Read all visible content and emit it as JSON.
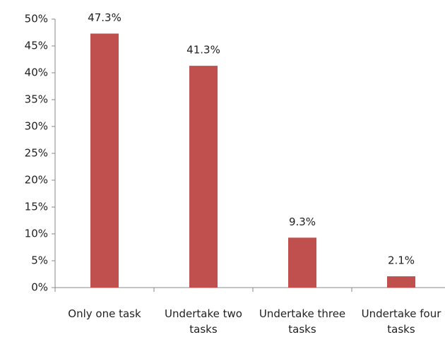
{
  "chart_data": {
    "type": "bar",
    "categories": [
      "Only one task",
      "Undertake two tasks",
      "Undertake three tasks",
      "Undertake four tasks"
    ],
    "values": [
      47.3,
      41.3,
      9.3,
      2.1
    ],
    "value_labels": [
      "47.3%",
      "41.3%",
      "9.3%",
      "2.1%"
    ],
    "color": "#c0504d",
    "ylim": [
      0,
      50
    ],
    "yticks": [
      {
        "value": 0,
        "label": "0%"
      },
      {
        "value": 5,
        "label": "5%"
      },
      {
        "value": 10,
        "label": "10%"
      },
      {
        "value": 15,
        "label": "15%"
      },
      {
        "value": 20,
        "label": "20%"
      },
      {
        "value": 25,
        "label": "25%"
      },
      {
        "value": 30,
        "label": "30%"
      },
      {
        "value": 35,
        "label": "35%"
      },
      {
        "value": 40,
        "label": "40%"
      },
      {
        "value": 45,
        "label": "45%"
      },
      {
        "value": 50,
        "label": "50%"
      }
    ],
    "grid": false
  }
}
